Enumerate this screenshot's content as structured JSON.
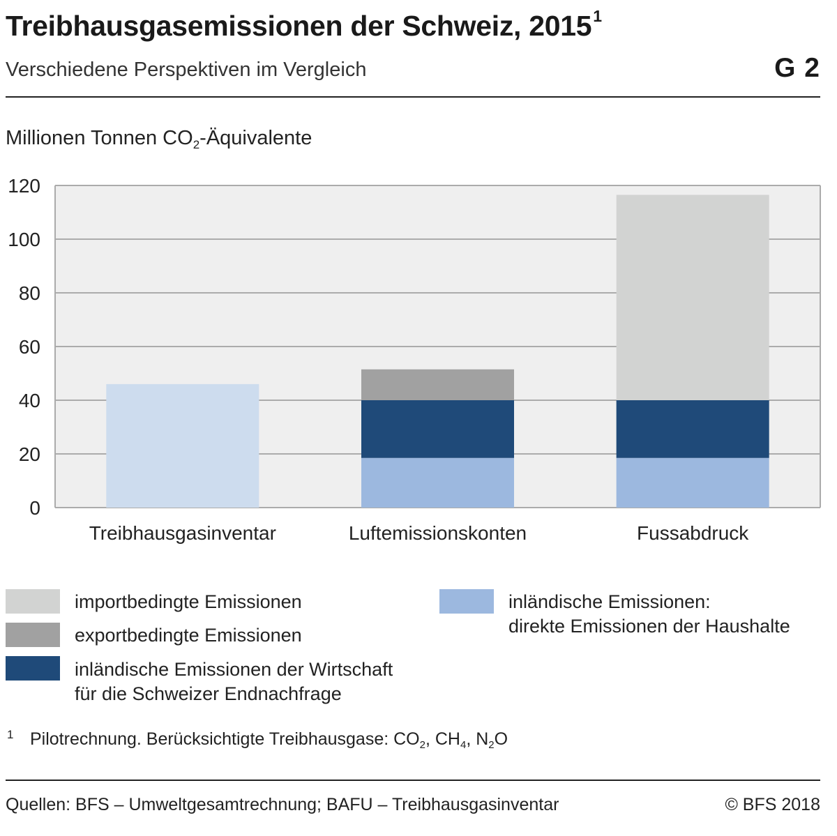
{
  "header": {
    "title": "Treibhausgasemissionen der Schweiz, 2015",
    "title_footnote_ref": "1",
    "subtitle": "Verschiedene Perspektiven im Vergleich",
    "graphic_id": "G 2"
  },
  "unit": {
    "before": "Millionen Tonnen CO",
    "subscript": "2",
    "after": "-Äquivalente"
  },
  "chart_data": {
    "type": "bar",
    "stacked": true,
    "categories": [
      "Treibhausgasinventar",
      "Luftemissionskonten",
      "Fussabdruck"
    ],
    "ylim": [
      0,
      120
    ],
    "yticks": [
      0,
      20,
      40,
      60,
      80,
      100,
      120
    ],
    "grid": true,
    "series": [
      {
        "name": "Treibhausgasinventar",
        "color": "#cddcee",
        "values": [
          46,
          0,
          0
        ]
      },
      {
        "name": "inländische Emissionen: direkte Emissionen der Haushalte",
        "color": "#9cb8df",
        "values": [
          0,
          18.5,
          18.5
        ]
      },
      {
        "name": "inländische Emissionen der Wirtschaft für die Schweizer Endnachfrage",
        "color": "#1f4a79",
        "values": [
          0,
          21.5,
          21.5
        ]
      },
      {
        "name": "exportbedingte Emissionen",
        "color": "#a1a1a1",
        "values": [
          0,
          11.5,
          0
        ]
      },
      {
        "name": "importbedingte Emissionen",
        "color": "#d2d3d2",
        "values": [
          0,
          0,
          76.5
        ]
      }
    ],
    "plot_background": "#efefef",
    "grid_color": "#ababab"
  },
  "legend": {
    "items": [
      {
        "lines": [
          "importbedingte Emissionen"
        ],
        "color": "#d2d3d2"
      },
      {
        "lines": [
          "exportbedingte Emissionen"
        ],
        "color": "#a1a1a1"
      },
      {
        "lines": [
          "inländische Emissionen der Wirtschaft",
          "für die Schweizer Endnachfrage"
        ],
        "color": "#1f4a79"
      },
      {
        "lines": [
          "inländische Emissionen:",
          "direkte Emissionen der Haushalte"
        ],
        "color": "#9cb8df"
      }
    ]
  },
  "footnote": {
    "mark": "1",
    "text_before": "Pilotrechnung. Berücksichtigte Treibhausgase: CO",
    "co2_sub": "2",
    "sep1": ", CH",
    "ch4_sub": "4",
    "sep2": ", N",
    "n2o_sub": "2",
    "text_after": "O"
  },
  "footer": {
    "sources": "Quellen: BFS – Umweltgesamtrechnung; BAFU – Treibhausgasinventar",
    "copyright": "© BFS 2018"
  }
}
